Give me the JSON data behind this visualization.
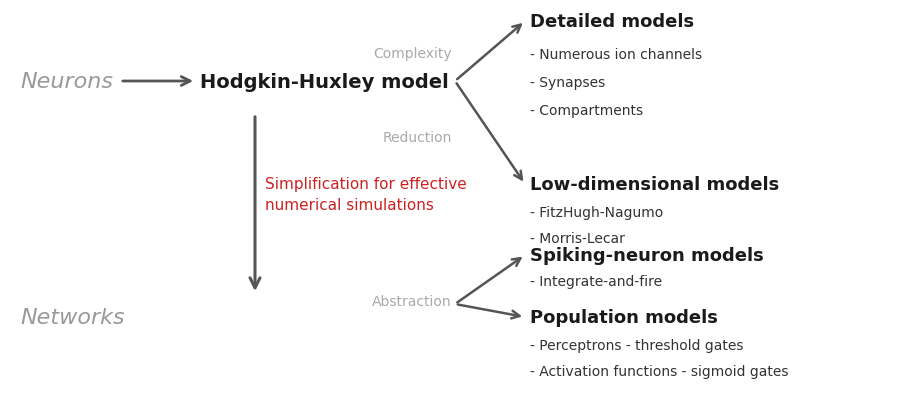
{
  "background_color": "#ffffff",
  "fig_width": 9.23,
  "fig_height": 4.02,
  "neurons_label": "Neurons",
  "neurons_color": "#999999",
  "networks_label": "Networks",
  "networks_color": "#999999",
  "hh_label": "Hodgkin-Huxley model",
  "hh_color": "#1a1a1a",
  "simplification_label": "Simplification for effective\nnumerical simulations",
  "simplification_color": "#cc2222",
  "complexity_label": "Complexity",
  "complexity_color": "#aaaaaa",
  "reduction_label": "Reduction",
  "reduction_color": "#aaaaaa",
  "abstraction_label": "Abstraction",
  "abstraction_color": "#aaaaaa",
  "detailed_title": "Detailed models",
  "detailed_items": [
    "- Numerous ion channels",
    "- Synapses",
    "- Compartments"
  ],
  "lowdim_title": "Low-dimensional models",
  "lowdim_items": [
    "- FitzHugh-Nagumo",
    "- Morris-Lecar"
  ],
  "spiking_title": "Spiking-neuron models",
  "spiking_items": [
    "- Integrate-and-fire"
  ],
  "population_title": "Population models",
  "population_items": [
    "- Perceptrons - threshold gates",
    "- Activation functions - sigmoid gates"
  ],
  "arrow_color": "#555555",
  "dark_text": "#1a1a1a",
  "body_text": "#333333"
}
